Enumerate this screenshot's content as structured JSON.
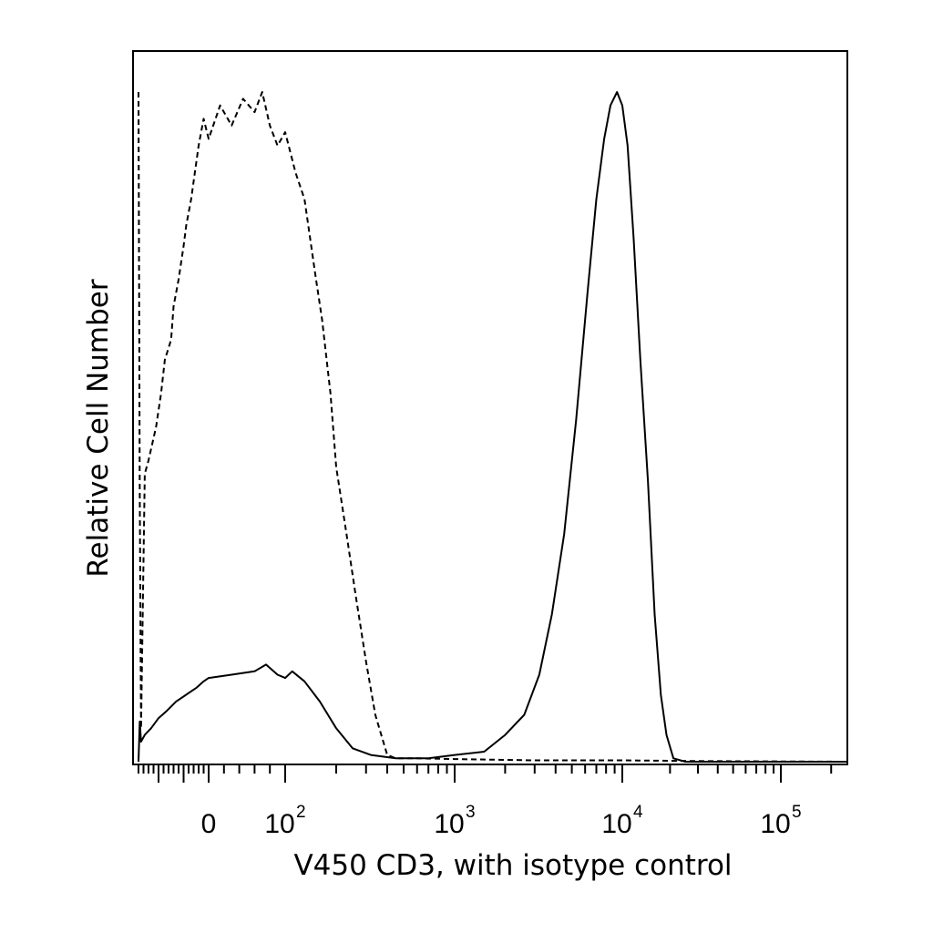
{
  "chart_data": {
    "type": "line",
    "title": "",
    "xlabel": "V450 CD3, with isotype control",
    "ylabel": "Relative Cell Number",
    "x_scale": "biexponential",
    "x_ticks": [
      {
        "value": 0,
        "base": "0",
        "exp": ""
      },
      {
        "value": 100,
        "base": "10",
        "exp": "2"
      },
      {
        "value": 1000,
        "base": "10",
        "exp": "3"
      },
      {
        "value": 10000,
        "base": "10",
        "exp": "4"
      },
      {
        "value": 100000,
        "base": "10",
        "exp": "5"
      }
    ],
    "xlim": [
      -300,
      250000
    ],
    "ylim": [
      0,
      100
    ],
    "y_ticks_shown": false,
    "grid": false,
    "legend": "none",
    "series": [
      {
        "style": "dashed",
        "points": [
          [
            -280,
            100
          ],
          [
            -275,
            40
          ],
          [
            -270,
            5
          ],
          [
            -255,
            43
          ],
          [
            -240,
            45
          ],
          [
            -210,
            50
          ],
          [
            -190,
            55
          ],
          [
            -175,
            60
          ],
          [
            -150,
            63
          ],
          [
            -140,
            68
          ],
          [
            -120,
            72
          ],
          [
            -100,
            77
          ],
          [
            -90,
            80
          ],
          [
            -70,
            84
          ],
          [
            -55,
            88
          ],
          [
            -40,
            92
          ],
          [
            -20,
            96
          ],
          [
            0,
            93
          ],
          [
            15,
            98
          ],
          [
            30,
            95
          ],
          [
            45,
            99
          ],
          [
            60,
            97
          ],
          [
            70,
            100
          ],
          [
            80,
            95
          ],
          [
            90,
            92
          ],
          [
            100,
            94
          ],
          [
            115,
            88
          ],
          [
            130,
            84
          ],
          [
            150,
            73
          ],
          [
            165,
            66
          ],
          [
            185,
            55
          ],
          [
            200,
            44
          ],
          [
            230,
            34
          ],
          [
            260,
            25
          ],
          [
            300,
            15
          ],
          [
            340,
            7
          ],
          [
            400,
            1
          ],
          [
            450,
            0.5
          ],
          [
            600,
            0.5
          ],
          [
            1000,
            0.4
          ],
          [
            3000,
            0.2
          ],
          [
            10000,
            0.2
          ],
          [
            30000,
            0.1
          ],
          [
            250000,
            0
          ]
        ]
      },
      {
        "style": "solid",
        "points": [
          [
            -280,
            0
          ],
          [
            -275,
            6
          ],
          [
            -270,
            3
          ],
          [
            -255,
            4
          ],
          [
            -230,
            5
          ],
          [
            -200,
            6.5
          ],
          [
            -170,
            7.5
          ],
          [
            -130,
            9
          ],
          [
            -90,
            10
          ],
          [
            -50,
            11
          ],
          [
            -20,
            12
          ],
          [
            0,
            12.5
          ],
          [
            30,
            13
          ],
          [
            60,
            13.5
          ],
          [
            75,
            14.5
          ],
          [
            90,
            13
          ],
          [
            100,
            12.5
          ],
          [
            110,
            13.5
          ],
          [
            130,
            12
          ],
          [
            160,
            9
          ],
          [
            200,
            5
          ],
          [
            250,
            2
          ],
          [
            320,
            1
          ],
          [
            450,
            0.5
          ],
          [
            700,
            0.5
          ],
          [
            1000,
            1
          ],
          [
            1500,
            1.5
          ],
          [
            2000,
            4
          ],
          [
            2600,
            7
          ],
          [
            3200,
            13
          ],
          [
            3800,
            22
          ],
          [
            4500,
            34
          ],
          [
            5300,
            51
          ],
          [
            6200,
            70
          ],
          [
            7000,
            84
          ],
          [
            7800,
            93
          ],
          [
            8500,
            98
          ],
          [
            9300,
            100
          ],
          [
            10000,
            98
          ],
          [
            10800,
            92
          ],
          [
            11800,
            78
          ],
          [
            13000,
            60
          ],
          [
            14500,
            42
          ],
          [
            16000,
            22
          ],
          [
            17500,
            10
          ],
          [
            19000,
            4
          ],
          [
            21000,
            0.5
          ],
          [
            25000,
            0
          ],
          [
            250000,
            0
          ]
        ]
      }
    ]
  }
}
